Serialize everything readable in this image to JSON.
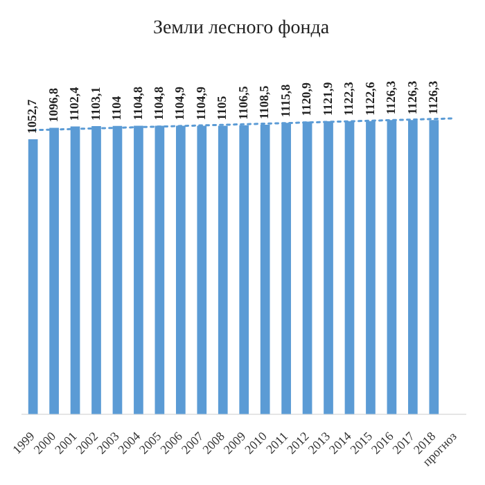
{
  "chart_data": {
    "type": "bar",
    "title": "Земли лесного фонда",
    "categories": [
      "1999",
      "2000",
      "2001",
      "2002",
      "2003",
      "2004",
      "2005",
      "2006",
      "2007",
      "2008",
      "2009",
      "2010",
      "2011",
      "2012",
      "2013",
      "2014",
      "2015",
      "2016",
      "2017",
      "2018",
      "прогноз"
    ],
    "series": [
      {
        "color": "#5b9bd5",
        "values": [
          1052.7,
          1096.8,
          1102.4,
          1103.1,
          1104,
          1104.8,
          1104.8,
          1104.9,
          1104.9,
          1105,
          1106.5,
          1108.5,
          1115.8,
          1120.9,
          1121.9,
          1122.3,
          1122.6,
          1126.3,
          1126.3,
          1126.3,
          null
        ],
        "value_labels": [
          "1052,7",
          "1096,8",
          "1102,4",
          "1103,1",
          "1104",
          "1104,8",
          "1104,8",
          "1104,9",
          "1104,9",
          "1105",
          "1106,5",
          "1108,5",
          "1115,8",
          "1120,9",
          "1121,9",
          "1122,3",
          "1122,6",
          "1126,3",
          "1126,3",
          "1126,3",
          null
        ]
      },
      {
        "type": "line",
        "color": "#5b9bd5",
        "line_style": "dotted",
        "values": [
          1088,
          null,
          null,
          null,
          null,
          null,
          null,
          null,
          null,
          null,
          null,
          null,
          null,
          null,
          null,
          null,
          null,
          null,
          null,
          null,
          1133
        ]
      }
    ],
    "tick_labels": "x",
    "legend": false,
    "grid": false
  }
}
